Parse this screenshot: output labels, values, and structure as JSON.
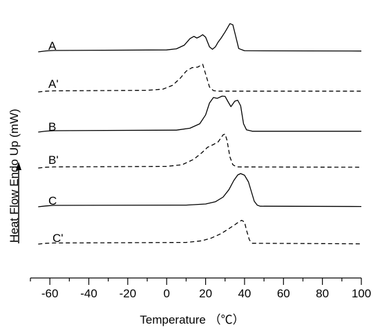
{
  "chart_data": {
    "type": "line",
    "xlabel": "Temperature （℃）",
    "ylabel": "Heat Flow Endo Up (mW)",
    "xlim": [
      -70,
      100
    ],
    "xticks": [
      -60,
      -40,
      -20,
      0,
      20,
      40,
      60,
      80,
      100
    ],
    "grid": false,
    "series": [
      {
        "name": "A",
        "dashed": false,
        "points": [
          [
            -66,
            0.0
          ],
          [
            -62,
            0.35
          ],
          [
            -58,
            0.5
          ],
          [
            0,
            0.7
          ],
          [
            5,
            1.1
          ],
          [
            9,
            2.4
          ],
          [
            12,
            4.8
          ],
          [
            14,
            5.6
          ],
          [
            15.5,
            5.0
          ],
          [
            17,
            5.5
          ],
          [
            18.5,
            6.2
          ],
          [
            20,
            5.3
          ],
          [
            22,
            1.8
          ],
          [
            23.5,
            0.95
          ],
          [
            25,
            1.8
          ],
          [
            26.5,
            3.6
          ],
          [
            28,
            5.0
          ],
          [
            30,
            7.2
          ],
          [
            32.5,
            10.2
          ],
          [
            34,
            9.8
          ],
          [
            35.5,
            5.5
          ],
          [
            37,
            1.2
          ],
          [
            40,
            0.4
          ],
          [
            100,
            0.3
          ]
        ]
      },
      {
        "name": "A'",
        "dashed": true,
        "points": [
          [
            -66,
            0.0
          ],
          [
            -62,
            0.3
          ],
          [
            -58,
            0.4
          ],
          [
            -10,
            0.6
          ],
          [
            -2,
            1.0
          ],
          [
            3,
            2.4
          ],
          [
            7,
            5.0
          ],
          [
            10,
            7.5
          ],
          [
            13,
            8.8
          ],
          [
            16,
            9.0
          ],
          [
            18.5,
            10.0
          ],
          [
            20,
            6.5
          ],
          [
            22,
            1.8
          ],
          [
            24,
            0.5
          ],
          [
            26,
            0.3
          ],
          [
            100,
            0.3
          ]
        ]
      },
      {
        "name": "B",
        "dashed": false,
        "points": [
          [
            -66,
            0.0
          ],
          [
            -62,
            0.35
          ],
          [
            -58,
            0.5
          ],
          [
            5,
            0.7
          ],
          [
            12,
            1.4
          ],
          [
            17,
            3.0
          ],
          [
            20,
            6.2
          ],
          [
            22,
            10.5
          ],
          [
            24,
            12.5
          ],
          [
            26,
            12.2
          ],
          [
            28.5,
            13.0
          ],
          [
            30,
            12.9
          ],
          [
            31.5,
            11.0
          ],
          [
            33,
            9.2
          ],
          [
            35,
            11.2
          ],
          [
            36.5,
            11.5
          ],
          [
            38,
            9.5
          ],
          [
            39.5,
            3.0
          ],
          [
            41,
            0.8
          ],
          [
            44,
            0.3
          ],
          [
            100,
            0.3
          ]
        ]
      },
      {
        "name": "B'",
        "dashed": true,
        "points": [
          [
            -66,
            0.0
          ],
          [
            -62,
            0.3
          ],
          [
            -58,
            0.4
          ],
          [
            0,
            0.6
          ],
          [
            8,
            1.2
          ],
          [
            14,
            3.2
          ],
          [
            18,
            5.5
          ],
          [
            21,
            7.5
          ],
          [
            24,
            8.5
          ],
          [
            26.5,
            9.5
          ],
          [
            29,
            12.0
          ],
          [
            30,
            12.3
          ],
          [
            31,
            10.0
          ],
          [
            32.5,
            4.0
          ],
          [
            34,
            1.2
          ],
          [
            36,
            0.4
          ],
          [
            100,
            0.3
          ]
        ]
      },
      {
        "name": "C",
        "dashed": false,
        "points": [
          [
            -66,
            0.0
          ],
          [
            -62,
            0.3
          ],
          [
            -58,
            0.5
          ],
          [
            10,
            0.6
          ],
          [
            20,
            1.0
          ],
          [
            25,
            1.8
          ],
          [
            29,
            3.5
          ],
          [
            32,
            6.2
          ],
          [
            34.5,
            9.5
          ],
          [
            36.5,
            11.5
          ],
          [
            38,
            12.0
          ],
          [
            40,
            11.4
          ],
          [
            42,
            9.0
          ],
          [
            43.5,
            5.5
          ],
          [
            45,
            2.0
          ],
          [
            46.5,
            0.6
          ],
          [
            48,
            0.2
          ],
          [
            100,
            0.1
          ]
        ]
      },
      {
        "name": "C'",
        "dashed": true,
        "points": [
          [
            -66,
            0.0
          ],
          [
            -62,
            0.3
          ],
          [
            -58,
            0.4
          ],
          [
            10,
            0.6
          ],
          [
            18,
            1.2
          ],
          [
            23,
            2.2
          ],
          [
            28,
            3.8
          ],
          [
            32,
            5.6
          ],
          [
            35,
            7.0
          ],
          [
            37,
            8.0
          ],
          [
            38.5,
            8.6
          ],
          [
            40,
            8.0
          ],
          [
            41,
            5.0
          ],
          [
            42.5,
            1.5
          ],
          [
            44,
            0.3
          ],
          [
            100,
            0.1
          ]
        ]
      }
    ]
  }
}
